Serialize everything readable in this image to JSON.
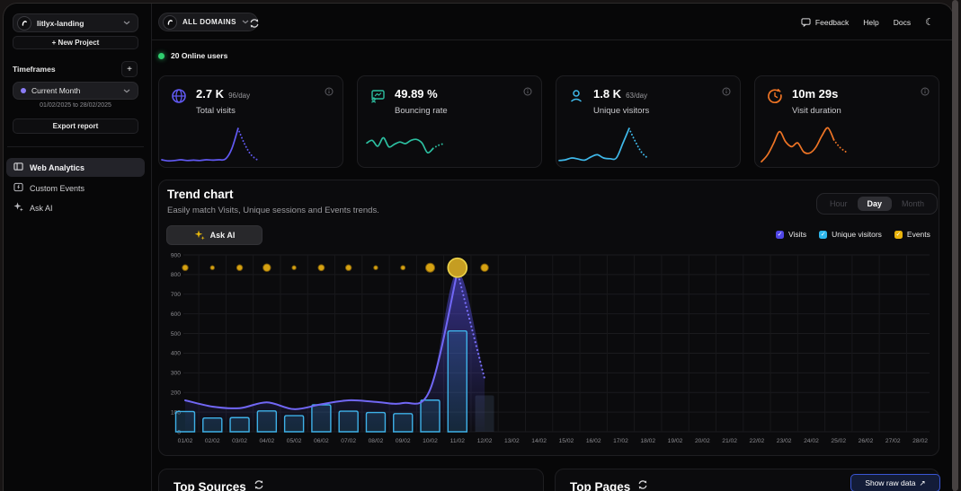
{
  "sidebar": {
    "project": {
      "name": "litlyx-landing"
    },
    "new_project_label": "+ New Project",
    "timeframes_label": "Timeframes",
    "add_timeframe_label": "+",
    "timeframe_selected": "Current Month",
    "date_range": "01/02/2025 to 28/02/2025",
    "export_label": "Export report",
    "nav": [
      {
        "label": "Web Analytics",
        "active": true
      },
      {
        "label": "Custom Events",
        "active": false
      },
      {
        "label": "Ask AI",
        "active": false
      }
    ]
  },
  "topbar": {
    "domain_selector": "ALL DOMAINS",
    "feedback_label": "Feedback",
    "help_label": "Help",
    "docs_label": "Docs"
  },
  "online_banner": {
    "text": "20 Online users"
  },
  "stat_cards": [
    {
      "value": "2.7 K",
      "per_day": "96/day",
      "label": "Total visits",
      "color": "#6159f2",
      "spark": {
        "solid": [
          0.1,
          0.07,
          0.08,
          0.1,
          0.08,
          0.09,
          0.08,
          0.1,
          0.09,
          0.1,
          0.12,
          0.4,
          0.97
        ],
        "dashed": [
          0.55,
          0.25,
          0.1
        ]
      }
    },
    {
      "value": "49.89 %",
      "per_day": "",
      "label": "Bouncing rate",
      "color": "#2cbfa0",
      "spark": {
        "solid": [
          0.52,
          0.6,
          0.42,
          0.68,
          0.4,
          0.48,
          0.55,
          0.5,
          0.6,
          0.63,
          0.52,
          0.22,
          0.35
        ],
        "dashed": [
          0.45,
          0.5
        ]
      }
    },
    {
      "value": "1.8 K",
      "per_day": "63/day",
      "label": "Unique visitors",
      "color": "#3fb9ea",
      "spark": {
        "solid": [
          0.08,
          0.1,
          0.15,
          0.12,
          0.09,
          0.18,
          0.24,
          0.15,
          0.13,
          0.15,
          0.55,
          0.97
        ],
        "dashed": [
          0.6,
          0.3,
          0.14
        ]
      }
    },
    {
      "value": "10m 29s",
      "per_day": "",
      "label": "Visit duration",
      "color": "#ee7425",
      "spark": {
        "solid": [
          0.02,
          0.2,
          0.5,
          0.82,
          0.55,
          0.42,
          0.52,
          0.28,
          0.25,
          0.4,
          0.7,
          0.92,
          0.6
        ],
        "dashed": [
          0.4,
          0.28
        ]
      }
    }
  ],
  "trend": {
    "title": "Trend chart",
    "subtitle": "Easily match Visits, Unique sessions and Events trends.",
    "granularity_options": [
      "Hour",
      "Day",
      "Month"
    ],
    "granularity_selected": "Day",
    "ask_ai_label": "Ask AI",
    "legend": [
      {
        "label": "Visits",
        "color": "#4f46e5"
      },
      {
        "label": "Unique visitors",
        "color": "#2eb6ea"
      },
      {
        "label": "Events",
        "color": "#e9b30b"
      }
    ]
  },
  "chart_data": {
    "type": "mixed",
    "title": "Trend chart",
    "categories": [
      "01/02",
      "02/02",
      "03/02",
      "04/02",
      "05/02",
      "06/02",
      "07/02",
      "08/02",
      "09/02",
      "10/02",
      "11/02",
      "12/02",
      "13/02",
      "14/02",
      "15/02",
      "16/02",
      "17/02",
      "18/02",
      "19/02",
      "20/02",
      "21/02",
      "22/02",
      "23/02",
      "24/02",
      "25/02",
      "26/02",
      "27/02",
      "28/02"
    ],
    "ylim": [
      0,
      900
    ],
    "y_ticks": [
      0,
      100,
      200,
      300,
      400,
      500,
      600,
      700,
      800,
      900
    ],
    "grid": true,
    "legend_position": "top-right",
    "series": [
      {
        "name": "Visits",
        "type": "line",
        "color": "#7167f5",
        "values": [
          160,
          128,
          120,
          150,
          115,
          140,
          160,
          152,
          146,
          215,
          815,
          null,
          null,
          null,
          null,
          null,
          null,
          null,
          null,
          null,
          null,
          null,
          null,
          null,
          null,
          null,
          null,
          null
        ],
        "projected_point": {
          "index": 11,
          "value": 270
        }
      },
      {
        "name": "Unique visitors",
        "type": "bar",
        "color": "#3eb1e8",
        "values": [
          103,
          70,
          72,
          106,
          82,
          137,
          105,
          98,
          92,
          161,
          513,
          null,
          null,
          null,
          null,
          null,
          null,
          null,
          null,
          null,
          null,
          null,
          null,
          null,
          null,
          null,
          null,
          null
        ],
        "projected_point": {
          "index": 11,
          "value": 185
        }
      },
      {
        "name": "Events",
        "type": "bubble",
        "color": "#d6a212",
        "lane_value": 835,
        "sizes": [
          3.2,
          2.2,
          3.2,
          4.2,
          2.2,
          3.4,
          3.2,
          2.2,
          2.4,
          5,
          10.5,
          4.2,
          null,
          null,
          null,
          null,
          null,
          null,
          null,
          null,
          null,
          null,
          null,
          null,
          null,
          null,
          null,
          null
        ],
        "selected_index": 10
      }
    ]
  },
  "bottom": {
    "top_sources_title": "Top Sources",
    "top_pages_title": "Top Pages",
    "show_raw_data_label": "Show raw data",
    "arrow_glyph": "↗"
  },
  "icons": {
    "moon": "☾",
    "check": "✓"
  }
}
